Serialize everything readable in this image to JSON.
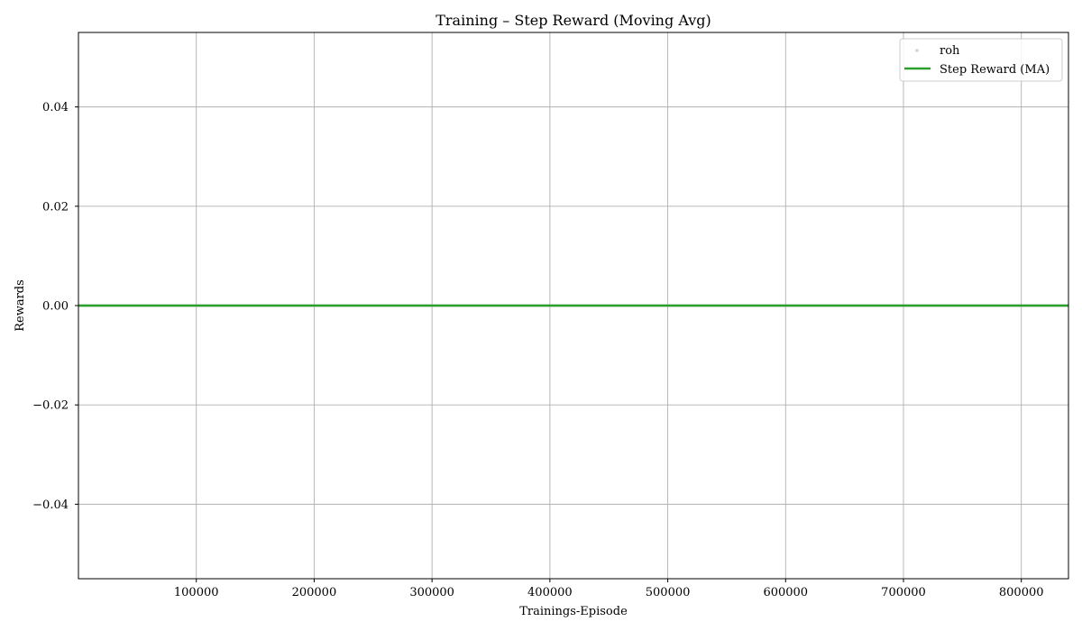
{
  "chart_data": {
    "type": "line",
    "title": "Training – Step Reward (Moving Avg)",
    "xlabel": "Trainings-Episode",
    "ylabel": "Rewards",
    "xlim": [
      0,
      840000
    ],
    "ylim": [
      -0.055,
      0.055
    ],
    "xticks": [
      100000,
      200000,
      300000,
      400000,
      500000,
      600000,
      700000,
      800000
    ],
    "xtick_labels": [
      "100000",
      "200000",
      "300000",
      "400000",
      "500000",
      "600000",
      "700000",
      "800000"
    ],
    "yticks": [
      -0.04,
      -0.02,
      0.0,
      0.02,
      0.04
    ],
    "ytick_labels": [
      "−0.04",
      "−0.02",
      "0.00",
      "0.02",
      "0.04"
    ],
    "grid": true,
    "legend_position": "top-right",
    "series": [
      {
        "name": "roh",
        "kind": "scatter",
        "color": "#b0b0b0",
        "x": [
          0,
          840000
        ],
        "y": [
          0.0,
          0.0
        ]
      },
      {
        "name": "Step Reward (MA)",
        "kind": "line",
        "color": "#2ca02c",
        "x": [
          0,
          840000
        ],
        "y": [
          0.0,
          0.0
        ]
      }
    ]
  }
}
